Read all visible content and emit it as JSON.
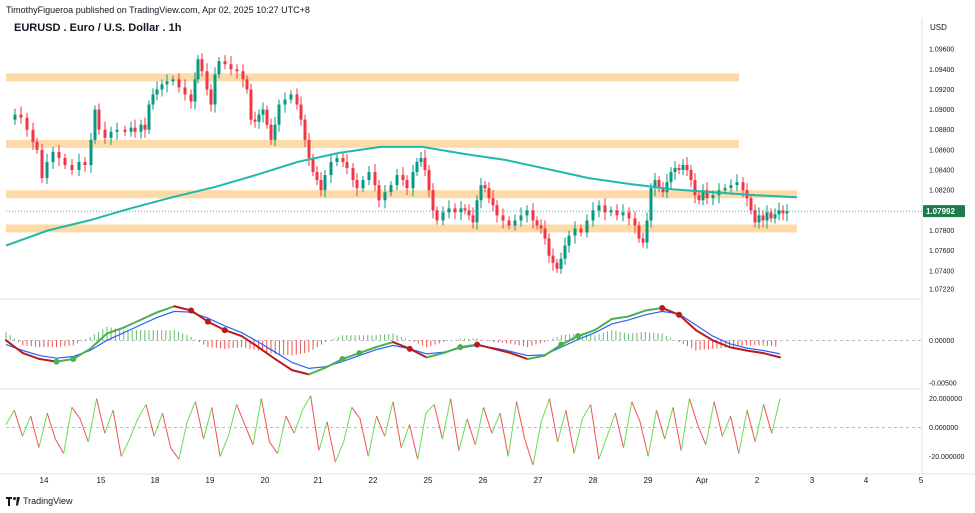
{
  "header": {
    "text": "TimothyFigueroa published on TradingView.com, Apr 02, 2025 10:27 UTC+8"
  },
  "title": "EURUSD . Euro / U.S. Dollar . 1h",
  "currency": "USD",
  "footer": {
    "brand": "TradingView"
  },
  "colors": {
    "up": "#089981",
    "down": "#f23645",
    "zone": "#ffd39a",
    "ma": "#22b8a8",
    "macd_fast_up": "#4caf50",
    "macd_fast_down": "#b71c1c",
    "macd_slow": "#2962ff",
    "rsi_up": "#66dd55",
    "rsi_down": "#f05050",
    "price_badge": "#1e7a4a"
  },
  "chart_data": [
    {
      "type": "candlestick",
      "name": "EURUSD",
      "x_ticks": [
        "14",
        "15",
        "18",
        "19",
        "20",
        "21",
        "22",
        "25",
        "26",
        "27",
        "28",
        "29",
        "Apr",
        "2",
        "3",
        "4",
        "5"
      ],
      "y_ticks": [
        "1.09600",
        "1.09400",
        "1.09200",
        "1.09000",
        "1.08800",
        "1.08600",
        "1.08400",
        "1.08200",
        "1.08000",
        "1.07800",
        "1.07600",
        "1.07400",
        "1.07220"
      ],
      "ylim": [
        1.0715,
        1.0975
      ],
      "last_price": "1.07992",
      "moving_average": [
        1.0765,
        1.078,
        1.079,
        1.0802,
        1.0813,
        1.0823,
        1.0835,
        1.0848,
        1.0857,
        1.0863,
        1.0863,
        1.0856,
        1.085,
        1.0841,
        1.0832,
        1.0826,
        1.0821,
        1.0818,
        1.0815,
        1.0813
      ],
      "support_resistance_zones": [
        {
          "center": 1.0932,
          "x_end": "Apr"
        },
        {
          "center": 1.0866,
          "x_end": "Apr"
        },
        {
          "center": 1.0816,
          "x_end": "2"
        },
        {
          "center": 1.0782,
          "x_end": "2"
        }
      ],
      "price_path": [
        [
          0,
          1.089
        ],
        [
          8,
          1.0895
        ],
        [
          14,
          1.0892
        ],
        [
          20,
          1.088
        ],
        [
          26,
          1.0868
        ],
        [
          30,
          1.086
        ],
        [
          35,
          1.0832
        ],
        [
          40,
          1.0848
        ],
        [
          46,
          1.0858
        ],
        [
          52,
          1.0852
        ],
        [
          58,
          1.0845
        ],
        [
          65,
          1.084
        ],
        [
          72,
          1.0848
        ],
        [
          78,
          1.0845
        ],
        [
          84,
          1.087
        ],
        [
          88,
          1.09
        ],
        [
          92,
          1.088
        ],
        [
          98,
          1.0872
        ],
        [
          104,
          1.0878
        ],
        [
          110,
          1.088
        ],
        [
          118,
          1.0878
        ],
        [
          124,
          1.0882
        ],
        [
          128,
          1.0878
        ],
        [
          134,
          1.0885
        ],
        [
          138,
          1.088
        ],
        [
          142,
          1.0905
        ],
        [
          146,
          1.0915
        ],
        [
          150,
          1.092
        ],
        [
          155,
          1.0925
        ],
        [
          160,
          1.0928
        ],
        [
          166,
          1.093
        ],
        [
          172,
          1.0922
        ],
        [
          178,
          1.0915
        ],
        [
          184,
          1.0908
        ],
        [
          188,
          1.093
        ],
        [
          191,
          1.095
        ],
        [
          195,
          1.0938
        ],
        [
          200,
          1.092
        ],
        [
          204,
          1.0905
        ],
        [
          208,
          1.0935
        ],
        [
          212,
          1.0948
        ],
        [
          218,
          1.0945
        ],
        [
          224,
          1.094
        ],
        [
          230,
          1.0938
        ],
        [
          236,
          1.093
        ],
        [
          240,
          1.092
        ],
        [
          244,
          1.089
        ],
        [
          248,
          1.0888
        ],
        [
          252,
          1.0895
        ],
        [
          256,
          1.09
        ],
        [
          260,
          1.0885
        ],
        [
          264,
          1.087
        ],
        [
          268,
          1.0885
        ],
        [
          272,
          1.0905
        ],
        [
          278,
          1.091
        ],
        [
          284,
          1.0915
        ],
        [
          290,
          1.0905
        ],
        [
          294,
          1.089
        ],
        [
          298,
          1.087
        ],
        [
          302,
          1.0852
        ],
        [
          306,
          1.0838
        ],
        [
          310,
          1.083
        ],
        [
          314,
          1.082
        ],
        [
          318,
          1.0835
        ],
        [
          324,
          1.0848
        ],
        [
          330,
          1.0852
        ],
        [
          336,
          1.0848
        ],
        [
          340,
          1.0842
        ],
        [
          346,
          1.083
        ],
        [
          350,
          1.0822
        ],
        [
          356,
          1.083
        ],
        [
          362,
          1.0838
        ],
        [
          368,
          1.0825
        ],
        [
          372,
          1.081
        ],
        [
          378,
          1.0818
        ],
        [
          384,
          1.0825
        ],
        [
          390,
          1.0835
        ],
        [
          396,
          1.083
        ],
        [
          400,
          1.0822
        ],
        [
          406,
          1.0838
        ],
        [
          410,
          1.0848
        ],
        [
          414,
          1.0852
        ],
        [
          418,
          1.084
        ],
        [
          422,
          1.082
        ],
        [
          426,
          1.08
        ],
        [
          430,
          1.079
        ],
        [
          436,
          1.0798
        ],
        [
          442,
          1.0802
        ],
        [
          448,
          1.0798
        ],
        [
          454,
          1.0802
        ],
        [
          458,
          1.08
        ],
        [
          462,
          1.0795
        ],
        [
          466,
          1.0788
        ],
        [
          470,
          1.081
        ],
        [
          474,
          1.0825
        ],
        [
          478,
          1.0822
        ],
        [
          482,
          1.0812
        ],
        [
          486,
          1.0805
        ],
        [
          490,
          1.0795
        ],
        [
          496,
          1.079
        ],
        [
          502,
          1.0785
        ],
        [
          508,
          1.079
        ],
        [
          514,
          1.0795
        ],
        [
          520,
          1.08
        ],
        [
          526,
          1.079
        ],
        [
          530,
          1.0785
        ],
        [
          534,
          1.0782
        ],
        [
          538,
          1.0772
        ],
        [
          542,
          1.0755
        ],
        [
          546,
          1.0748
        ],
        [
          550,
          1.0742
        ],
        [
          554,
          1.0752
        ],
        [
          558,
          1.0765
        ],
        [
          562,
          1.0775
        ],
        [
          568,
          1.0782
        ],
        [
          574,
          1.0778
        ],
        [
          580,
          1.079
        ],
        [
          586,
          1.08
        ],
        [
          592,
          1.0805
        ],
        [
          598,
          1.0798
        ],
        [
          604,
          1.08
        ],
        [
          610,
          1.0795
        ],
        [
          616,
          1.0798
        ],
        [
          622,
          1.0792
        ],
        [
          628,
          1.0785
        ],
        [
          632,
          1.0772
        ],
        [
          636,
          1.0768
        ],
        [
          640,
          1.079
        ],
        [
          644,
          1.0822
        ],
        [
          648,
          1.083
        ],
        [
          652,
          1.0822
        ],
        [
          656,
          1.0818
        ],
        [
          660,
          1.0828
        ],
        [
          664,
          1.0838
        ],
        [
          668,
          1.0842
        ],
        [
          672,
          1.084
        ],
        [
          676,
          1.0845
        ],
        [
          680,
          1.084
        ],
        [
          684,
          1.083
        ],
        [
          688,
          1.0815
        ],
        [
          692,
          1.081
        ],
        [
          696,
          1.082
        ],
        [
          700,
          1.0812
        ],
        [
          706,
          1.0815
        ],
        [
          712,
          1.082
        ],
        [
          718,
          1.0822
        ],
        [
          724,
          1.0825
        ],
        [
          730,
          1.0828
        ],
        [
          736,
          1.082
        ],
        [
          740,
          1.0812
        ],
        [
          744,
          1.08
        ],
        [
          748,
          1.0788
        ],
        [
          752,
          1.0795
        ],
        [
          756,
          1.079
        ],
        [
          760,
          1.0798
        ],
        [
          764,
          1.0792
        ],
        [
          768,
          1.0796
        ],
        [
          772,
          1.08
        ],
        [
          776,
          1.0797
        ],
        [
          780,
          1.0799
        ]
      ]
    },
    {
      "type": "line",
      "name": "MACD",
      "y_ticks": [
        "0.00000",
        "-0.00500"
      ],
      "ylim": [
        -0.0056,
        0.0045
      ],
      "zero_line": 0.0,
      "series": [
        {
          "name": "fast",
          "values": [
            0.0,
            -0.0015,
            -0.0022,
            -0.0025,
            -0.0022,
            -0.001,
            0.0008,
            0.0015,
            0.0024,
            0.0033,
            0.004,
            0.0035,
            0.0022,
            0.0012,
            0.0005,
            -0.0008,
            -0.0022,
            -0.0035,
            -0.004,
            -0.0032,
            -0.0022,
            -0.0015,
            -0.0008,
            -0.0002,
            -0.001,
            -0.002,
            -0.0015,
            -0.0008,
            -0.0005,
            -0.001,
            -0.0015,
            -0.0022,
            -0.0018,
            -0.0005,
            0.0005,
            0.0012,
            0.0025,
            0.0028,
            0.0035,
            0.0038,
            0.003,
            0.0012,
            0.0,
            -0.0008,
            -0.0012,
            -0.0015,
            -0.002
          ]
        },
        {
          "name": "slow",
          "values": [
            -0.0005,
            -0.0012,
            -0.0018,
            -0.0021,
            -0.0019,
            -0.0012,
            0.0,
            0.0009,
            0.0018,
            0.0027,
            0.0034,
            0.0033,
            0.0026,
            0.0017,
            0.0009,
            -0.0002,
            -0.0014,
            -0.0026,
            -0.0033,
            -0.0031,
            -0.0025,
            -0.0018,
            -0.0011,
            -0.0006,
            -0.001,
            -0.0016,
            -0.0014,
            -0.0009,
            -0.0006,
            -0.0009,
            -0.0013,
            -0.0018,
            -0.0017,
            -0.0008,
            0.0001,
            0.0009,
            0.0019,
            0.0024,
            0.003,
            0.0034,
            0.0031,
            0.0018,
            0.0005,
            -0.0004,
            -0.0009,
            -0.0012,
            -0.0016
          ]
        },
        {
          "name": "cross_markers",
          "values": [
            3,
            4,
            11,
            12,
            13,
            20,
            21,
            24,
            27,
            28,
            33,
            34,
            39,
            40
          ]
        }
      ]
    },
    {
      "type": "line",
      "name": "Oscillator",
      "y_ticks": [
        "20.000000",
        "0.000000",
        "-20.000000"
      ],
      "ylim": [
        -28,
        26
      ],
      "zero_line": 0.0,
      "series": [
        {
          "name": "oscillator",
          "values": [
            2,
            12,
            -6,
            8,
            -14,
            10,
            -8,
            -18,
            14,
            6,
            -10,
            20,
            -4,
            12,
            -20,
            -8,
            6,
            16,
            -6,
            10,
            -14,
            -22,
            4,
            18,
            -8,
            14,
            -20,
            -6,
            16,
            2,
            -12,
            20,
            -10,
            -18,
            8,
            -4,
            12,
            22,
            -16,
            4,
            -24,
            -10,
            14,
            6,
            -20,
            8,
            -6,
            18,
            -14,
            2,
            -22,
            10,
            16,
            -8,
            20,
            -16,
            6,
            -12,
            14,
            -4,
            10,
            -20,
            18,
            -8,
            -26,
            4,
            20,
            -10,
            12,
            -18,
            6,
            16,
            -22,
            -6,
            10,
            -14,
            18,
            4,
            -20,
            12,
            -8,
            14,
            -16,
            20,
            2,
            -12,
            18,
            -6,
            8,
            -18,
            12,
            -10,
            16,
            -4,
            20
          ]
        }
      ]
    }
  ]
}
